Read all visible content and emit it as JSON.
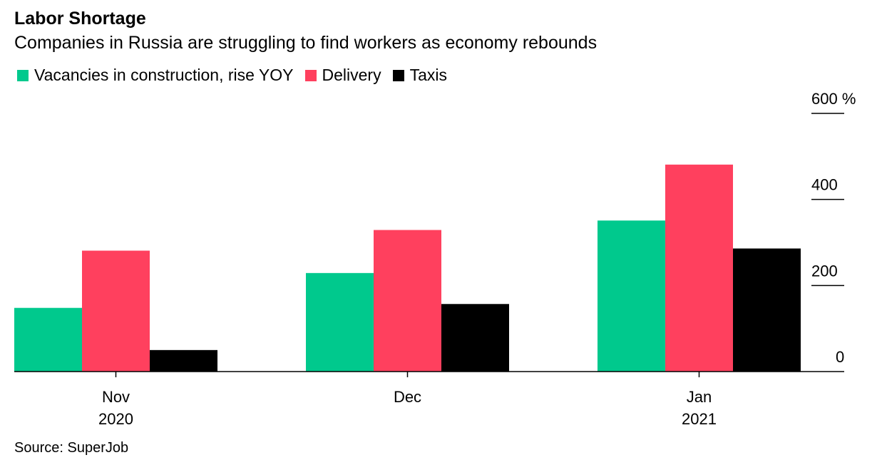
{
  "header": {
    "title": "Labor Shortage",
    "subtitle": "Companies in Russia are struggling to find workers as economy rebounds"
  },
  "source": "Source: SuperJob",
  "chart_data": {
    "type": "bar",
    "categories": [
      [
        "Nov",
        "2020"
      ],
      [
        "Dec",
        ""
      ],
      [
        "Jan",
        "2021"
      ]
    ],
    "series": [
      {
        "name": "Vacancies in construction, rise YOY",
        "color": "#00c98d",
        "values": [
          148,
          229,
          351
        ]
      },
      {
        "name": "Delivery",
        "color": "#ff405e",
        "values": [
          281,
          329,
          481
        ]
      },
      {
        "name": "Taxis",
        "color": "#000000",
        "values": [
          50,
          157,
          286
        ]
      }
    ],
    "yticks": [
      {
        "value": 0,
        "label": "0"
      },
      {
        "value": 200,
        "label": "200"
      },
      {
        "value": 400,
        "label": "400"
      },
      {
        "value": 600,
        "label": "600 %"
      }
    ],
    "ylim": [
      0,
      600
    ],
    "axis_position": "right",
    "legend_position": "top-left"
  }
}
